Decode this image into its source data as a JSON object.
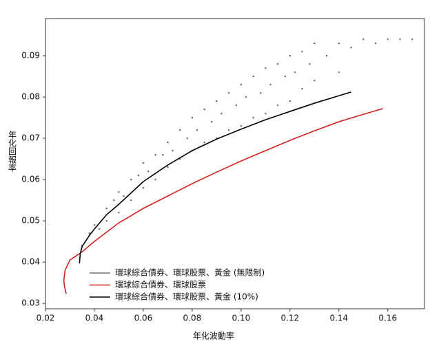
{
  "chart_data": {
    "type": "scatter",
    "xlabel": "年化波動率",
    "ylabel": "年化回報率",
    "xlim": [
      0.02,
      0.175
    ],
    "ylim": [
      0.0287,
      0.099
    ],
    "xticks": [
      0.02,
      0.04,
      0.06,
      0.08,
      {
        "value": 0.1,
        "label": "0.10"
      },
      0.12,
      0.14,
      0.16
    ],
    "yticks": [
      0.03,
      0.04,
      0.05,
      0.06,
      0.07,
      0.08,
      0.09
    ],
    "legend": "lower-left",
    "series": [
      {
        "name": "環球綜合債券、環球股票、黃金 (無限制)",
        "color": "#777777",
        "mode": "points",
        "x": [
          0.035,
          0.038,
          0.04,
          0.042,
          0.045,
          0.045,
          0.048,
          0.05,
          0.05,
          0.052,
          0.055,
          0.055,
          0.058,
          0.06,
          0.06,
          0.062,
          0.065,
          0.065,
          0.068,
          0.07,
          0.07,
          0.072,
          0.075,
          0.075,
          0.078,
          0.08,
          0.08,
          0.082,
          0.085,
          0.085,
          0.088,
          0.09,
          0.09,
          0.092,
          0.095,
          0.095,
          0.098,
          0.1,
          0.1,
          0.102,
          0.105,
          0.105,
          0.108,
          0.11,
          0.11,
          0.112,
          0.115,
          0.115,
          0.118,
          0.12,
          0.12,
          0.122,
          0.125,
          0.125,
          0.128,
          0.13,
          0.13,
          0.135,
          0.14,
          0.14,
          0.145,
          0.15,
          0.155,
          0.16,
          0.165,
          0.17
        ],
        "values": [
          0.044,
          0.047,
          0.049,
          0.048,
          0.053,
          0.05,
          0.055,
          0.057,
          0.052,
          0.056,
          0.06,
          0.055,
          0.061,
          0.064,
          0.058,
          0.062,
          0.066,
          0.06,
          0.066,
          0.069,
          0.063,
          0.067,
          0.072,
          0.065,
          0.07,
          0.075,
          0.067,
          0.072,
          0.077,
          0.069,
          0.074,
          0.079,
          0.07,
          0.076,
          0.081,
          0.072,
          0.078,
          0.083,
          0.073,
          0.08,
          0.085,
          0.075,
          0.081,
          0.087,
          0.076,
          0.083,
          0.088,
          0.078,
          0.085,
          0.09,
          0.079,
          0.086,
          0.091,
          0.082,
          0.088,
          0.093,
          0.084,
          0.09,
          0.093,
          0.086,
          0.092,
          0.094,
          0.093,
          0.094,
          0.094,
          0.094
        ]
      },
      {
        "name": "環球綜合債券、環球股票",
        "color": "#d62020",
        "mode": "line",
        "x": [
          0.0285,
          0.0278,
          0.0275,
          0.028,
          0.03,
          0.035,
          0.04,
          0.05,
          0.06,
          0.07,
          0.08,
          0.09,
          0.1,
          0.11,
          0.12,
          0.13,
          0.14,
          0.15,
          0.158
        ],
        "values": [
          0.0323,
          0.034,
          0.0355,
          0.038,
          0.0405,
          0.0425,
          0.045,
          0.0495,
          0.053,
          0.056,
          0.059,
          0.0618,
          0.0645,
          0.067,
          0.0695,
          0.0718,
          0.074,
          0.0758,
          0.0772
        ]
      },
      {
        "name": "環球綜合債券、環球股票、黃金 (10%)",
        "color": "#000000",
        "mode": "line",
        "x": [
          0.0339,
          0.0342,
          0.035,
          0.038,
          0.04,
          0.045,
          0.05,
          0.06,
          0.07,
          0.08,
          0.09,
          0.1,
          0.11,
          0.12,
          0.13,
          0.14,
          0.145
        ],
        "values": [
          0.0397,
          0.042,
          0.0438,
          0.0465,
          0.048,
          0.0515,
          0.054,
          0.0595,
          0.0635,
          0.067,
          0.0698,
          0.0722,
          0.0745,
          0.0765,
          0.0785,
          0.0803,
          0.0812
        ]
      }
    ]
  }
}
